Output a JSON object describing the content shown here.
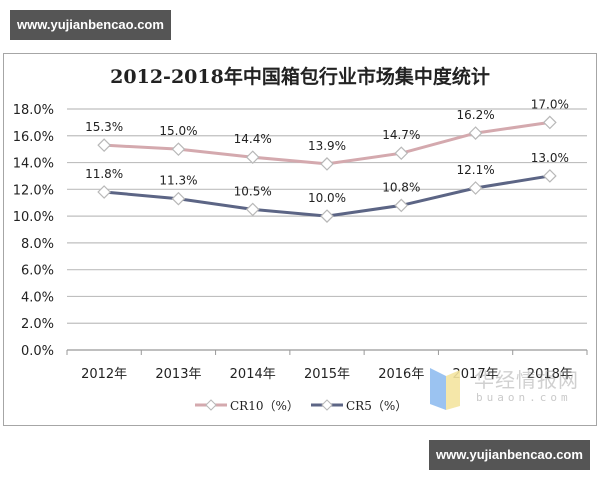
{
  "watermarks": {
    "top": "www.yujianbencao.com",
    "bottom": "www.yujianbencao.com",
    "overlay_cn": "华经情报网",
    "overlay_en": "buaon.com"
  },
  "chart_data": {
    "type": "line",
    "title": "2012-2018年中国箱包行业市场集中度统计",
    "xlabel": "",
    "ylabel": "",
    "categories": [
      "2012年",
      "2013年",
      "2014年",
      "2015年",
      "2016年",
      "2017年",
      "2018年"
    ],
    "series": [
      {
        "name": "CR10（%）",
        "values": [
          15.3,
          15.0,
          14.4,
          13.9,
          14.7,
          16.2,
          17.0
        ],
        "labels": [
          "15.3%",
          "15.0%",
          "14.4%",
          "13.9%",
          "14.7%",
          "16.2%",
          "17.0%"
        ],
        "color": "#d4a9ae"
      },
      {
        "name": "CR5（%）",
        "values": [
          11.8,
          11.3,
          10.5,
          10.0,
          10.8,
          12.1,
          13.0
        ],
        "labels": [
          "11.8%",
          "11.3%",
          "10.5%",
          "10.0%",
          "10.8%",
          "12.1%",
          "13.0%"
        ],
        "color": "#5c6585"
      }
    ],
    "yticks": [
      "0.0%",
      "2.0%",
      "4.0%",
      "6.0%",
      "8.0%",
      "10.0%",
      "12.0%",
      "14.0%",
      "16.0%",
      "18.0%"
    ],
    "ylim": [
      0,
      18
    ],
    "grid": true,
    "legend_position": "bottom"
  }
}
